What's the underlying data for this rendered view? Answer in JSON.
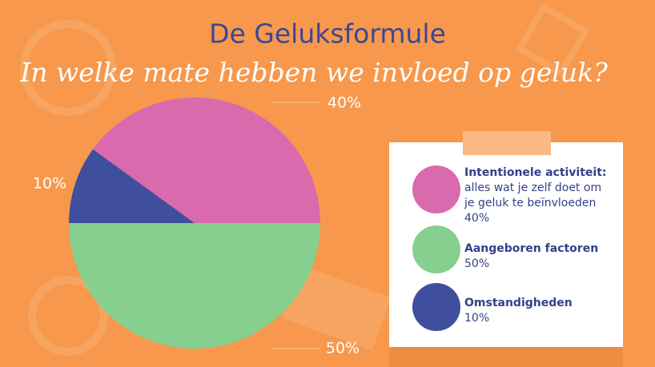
{
  "chart_data": {
    "type": "pie",
    "title": "De Geluksformule",
    "subtitle": "In welke mate hebben we invloed op geluk?",
    "categories": [
      "Intentionele activiteit:",
      "Aangeboren factoren",
      "Omstandigheden"
    ],
    "descriptions": [
      [
        "alles wat je zelf doet om",
        "je geluk te beïnvloeden"
      ],
      null,
      null
    ],
    "values": [
      40,
      50,
      10
    ],
    "value_labels": [
      "40%",
      "50%",
      "10%"
    ],
    "colors": [
      "#d96aae",
      "#86cf8e",
      "#3f4f9e"
    ]
  }
}
